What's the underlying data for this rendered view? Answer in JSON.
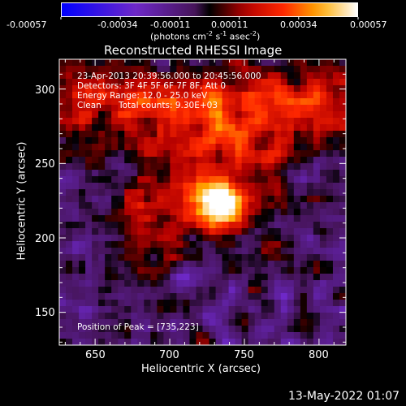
{
  "colorbar": {
    "tick_labels": [
      "-0.00057",
      "-0.00034",
      "-0.00011",
      "0.00011",
      "0.00034",
      "0.00057"
    ],
    "units_prefix": "(photons cm",
    "units_exp1": "-2",
    "units_mid1": " s",
    "units_exp2": "-1",
    "units_mid2": " asec",
    "units_exp3": "-2",
    "units_suffix": ")"
  },
  "chart_data": {
    "type": "heatmap",
    "title": "Reconstructed RHESSI Image",
    "xlabel": "Heliocentric X (arcsec)",
    "ylabel": "Heliocentric Y (arcsec)",
    "xlim": [
      626,
      818
    ],
    "ylim": [
      128,
      320
    ],
    "x_ticks": [
      650,
      700,
      750,
      800
    ],
    "y_ticks": [
      150,
      200,
      250,
      300
    ],
    "value_range": [
      -0.00057,
      0.00057
    ],
    "peak": [
      735,
      223
    ],
    "annotations": [
      "23-Apr-2013 20:39:56.000 to 20:45:56.000",
      "Detectors: 3F 4F 5F 6F 7F 8F, Att 0",
      "Energy Range: 12.0 - 25.0 keV",
      "Clean",
      "Total counts: 9.30E+03"
    ],
    "peak_label": "Position of Peak = [735,223]"
  },
  "footer": {
    "date": "13-May-2022 01:07"
  }
}
